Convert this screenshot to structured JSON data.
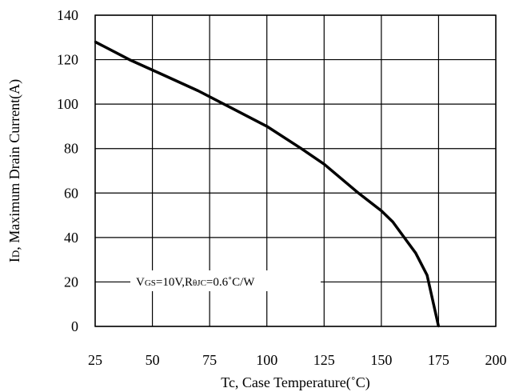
{
  "chart_data": {
    "type": "line",
    "xlabel": "Tc, Case Temperature(˚C)",
    "ylabel": "ID, Maximum Drain Current(A)",
    "ylabel_parts": {
      "main": "I",
      "sub": "D",
      "rest": ", Maximum Drain Current(A)"
    },
    "xlim": [
      25,
      200
    ],
    "ylim": [
      0,
      140
    ],
    "x_ticks": [
      25,
      50,
      75,
      100,
      125,
      150,
      175,
      200
    ],
    "y_ticks": [
      0,
      20,
      40,
      60,
      80,
      100,
      120,
      140
    ],
    "grid": true,
    "annotation": {
      "text": "VGS=10V,RθJC=0.6˚C/W",
      "parts": {
        "v": "V",
        "gs": "GS",
        "mid": "=10V,R",
        "theta": "θJC",
        "end": "=0.6˚C/W"
      }
    },
    "series": [
      {
        "x": [
          25,
          40,
          55,
          70,
          85,
          100,
          115,
          125,
          140,
          150,
          155,
          160,
          165,
          170,
          175
        ],
        "y": [
          128,
          120,
          113,
          106,
          98,
          90,
          80,
          73,
          60,
          52,
          47,
          40,
          33,
          23,
          0
        ]
      }
    ],
    "colors": {
      "line": "#000000",
      "grid": "#000000",
      "background": "#ffffff"
    }
  }
}
